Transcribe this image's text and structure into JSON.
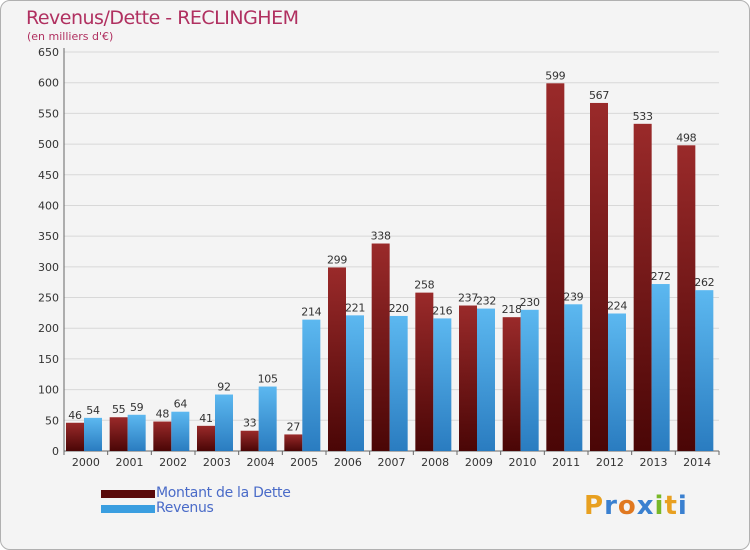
{
  "header": {
    "title": "Revenus/Dette - RECLINGHEM",
    "subtitle": "(en milliers d'€)"
  },
  "chart_data": {
    "type": "bar",
    "categories": [
      "2000",
      "2001",
      "2002",
      "2003",
      "2004",
      "2005",
      "2006",
      "2007",
      "2008",
      "2009",
      "2010",
      "2011",
      "2012",
      "2013",
      "2014"
    ],
    "series": [
      {
        "name": "Montant de la Dette",
        "color": "#7a1010",
        "values": [
          46,
          55,
          48,
          41,
          33,
          27,
          299,
          338,
          258,
          237,
          218,
          599,
          567,
          533,
          498
        ]
      },
      {
        "name": "Revenus",
        "color": "#3a9ee0",
        "values": [
          54,
          59,
          64,
          92,
          105,
          214,
          221,
          220,
          216,
          232,
          230,
          239,
          224,
          272,
          262
        ]
      }
    ],
    "ylim": [
      0,
      650
    ],
    "yticks": [
      0,
      50,
      100,
      150,
      200,
      250,
      300,
      350,
      400,
      450,
      500,
      550,
      600,
      650
    ],
    "grid": true,
    "legend_position": "bottom-left"
  },
  "legend": {
    "items": [
      {
        "label": "Montant de la Dette",
        "color": "#5a0a0a"
      },
      {
        "label": "Revenus",
        "color": "#3a9ee0"
      }
    ]
  },
  "logo": {
    "letters": [
      "P",
      "r",
      "o",
      "x",
      "i",
      "t",
      "i"
    ],
    "colors": [
      "#e8a020",
      "#3a80d0",
      "#e07820",
      "#3a80d0",
      "#78b828",
      "#e8a020",
      "#3a80d0"
    ]
  }
}
